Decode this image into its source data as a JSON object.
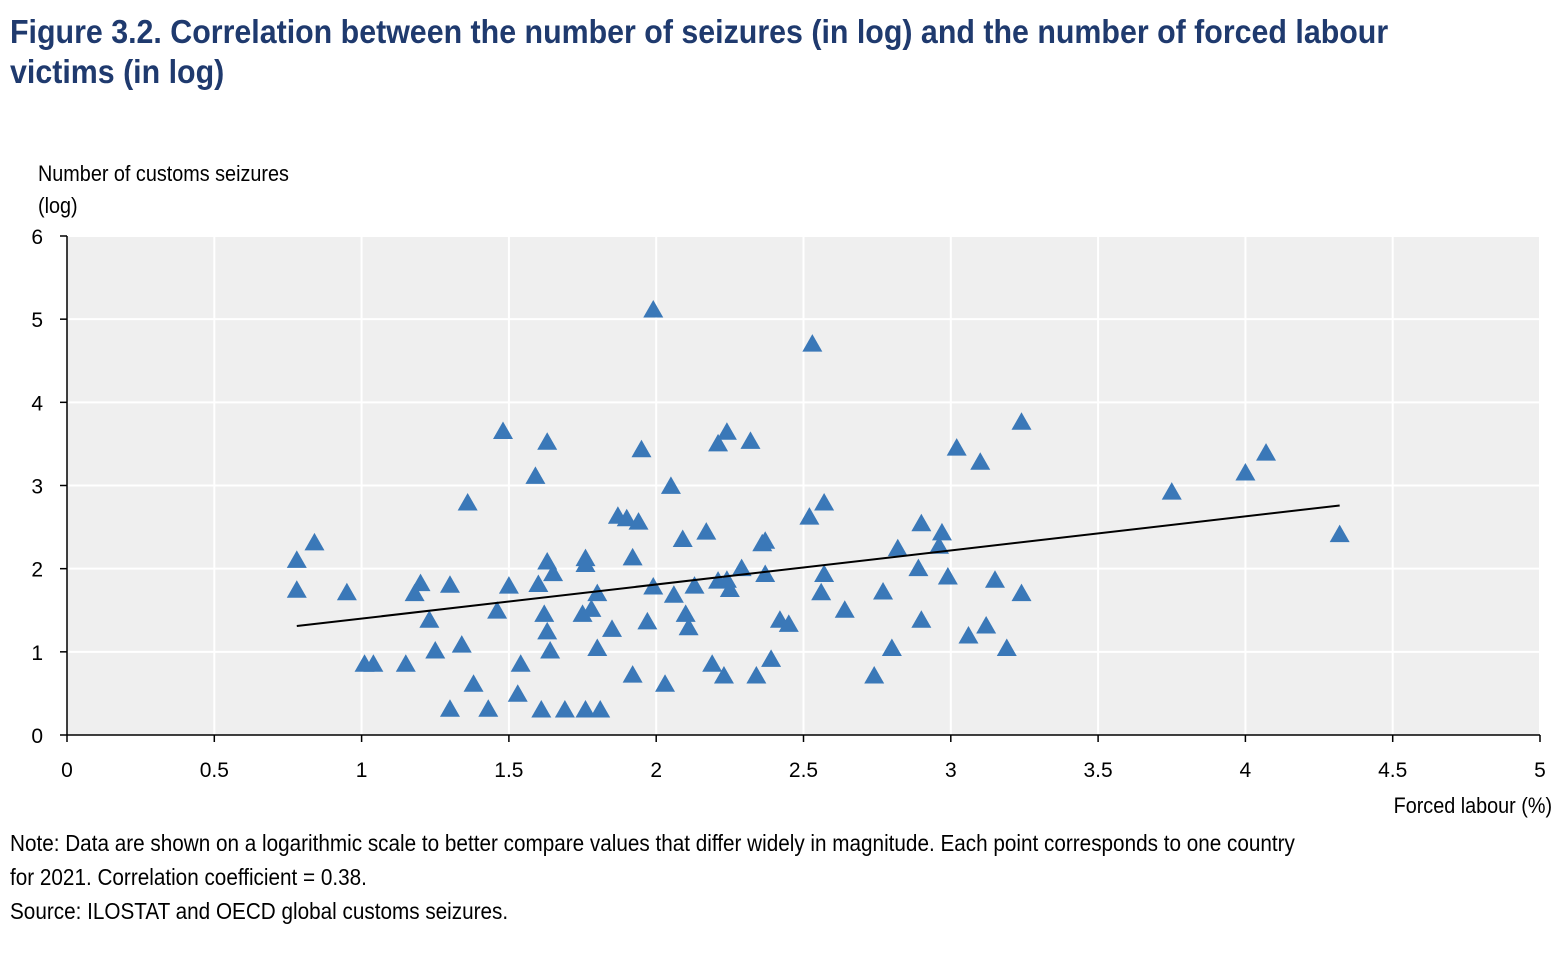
{
  "figure": {
    "title": "Figure 3.2. Correlation between the number of seizures (in log) and the number of forced labour victims (in log)",
    "note": "Note: Data are shown on a logarithmic scale to better compare values that differ widely in magnitude. Each point corresponds to one country for 2021. Correlation coefficient = 0.38.",
    "source": "Source: ILOSTAT and OECD global customs seizures."
  },
  "colors": {
    "marker": "#3a78b8",
    "plot_bg": "#efefef",
    "title": "#1f3a6e"
  },
  "chart_data": {
    "type": "scatter",
    "title": "Figure 3.2. Correlation between the number of seizures (in log) and the number of forced labour victims (in log)",
    "ylabel_line1": "Number of customs seizures",
    "ylabel_line2": "(log)",
    "xlabel": "Forced labour (%)",
    "xlim": [
      0,
      5
    ],
    "ylim": [
      0,
      6
    ],
    "xticks": [
      "0",
      "0.5",
      "1",
      "1.5",
      "2",
      "2.5",
      "3",
      "3.5",
      "4",
      "4.5",
      "5"
    ],
    "yticks": [
      "0",
      "1",
      "2",
      "3",
      "4",
      "5",
      "6"
    ],
    "grid": true,
    "marker": "triangle",
    "trendline": {
      "x": [
        0.78,
        4.32
      ],
      "y": [
        1.31,
        2.76
      ]
    },
    "points": [
      [
        0.78,
        2.1
      ],
      [
        0.78,
        1.74
      ],
      [
        0.84,
        2.31
      ],
      [
        0.95,
        1.71
      ],
      [
        1.01,
        0.85
      ],
      [
        1.04,
        0.85
      ],
      [
        1.15,
        0.85
      ],
      [
        1.18,
        1.7
      ],
      [
        1.2,
        1.82
      ],
      [
        1.23,
        1.38
      ],
      [
        1.25,
        1.01
      ],
      [
        1.3,
        1.8
      ],
      [
        1.3,
        0.31
      ],
      [
        1.34,
        1.08
      ],
      [
        1.36,
        2.79
      ],
      [
        1.38,
        0.61
      ],
      [
        1.43,
        0.31
      ],
      [
        1.46,
        1.49
      ],
      [
        1.48,
        3.65
      ],
      [
        1.5,
        1.79
      ],
      [
        1.53,
        0.49
      ],
      [
        1.54,
        0.85
      ],
      [
        1.59,
        3.11
      ],
      [
        1.6,
        1.81
      ],
      [
        1.61,
        0.3
      ],
      [
        1.62,
        1.45
      ],
      [
        1.63,
        3.52
      ],
      [
        1.63,
        1.24
      ],
      [
        1.63,
        2.08
      ],
      [
        1.64,
        1.01
      ],
      [
        1.65,
        1.94
      ],
      [
        1.69,
        0.3
      ],
      [
        1.75,
        1.45
      ],
      [
        1.76,
        0.3
      ],
      [
        1.76,
        2.12
      ],
      [
        1.76,
        2.05
      ],
      [
        1.78,
        1.51
      ],
      [
        1.8,
        1.7
      ],
      [
        1.8,
        1.04
      ],
      [
        1.81,
        0.3
      ],
      [
        1.85,
        1.27
      ],
      [
        1.87,
        2.63
      ],
      [
        1.9,
        2.6
      ],
      [
        1.92,
        2.13
      ],
      [
        1.92,
        0.72
      ],
      [
        1.94,
        2.56
      ],
      [
        1.95,
        3.43
      ],
      [
        1.97,
        1.36
      ],
      [
        1.99,
        1.78
      ],
      [
        1.99,
        5.11
      ],
      [
        2.03,
        0.61
      ],
      [
        2.05,
        2.99
      ],
      [
        2.06,
        1.68
      ],
      [
        2.09,
        2.35
      ],
      [
        2.1,
        1.45
      ],
      [
        2.11,
        1.29
      ],
      [
        2.13,
        1.79
      ],
      [
        2.17,
        2.44
      ],
      [
        2.19,
        0.85
      ],
      [
        2.21,
        3.5
      ],
      [
        2.21,
        1.85
      ],
      [
        2.23,
        0.71
      ],
      [
        2.24,
        3.64
      ],
      [
        2.24,
        1.86
      ],
      [
        2.25,
        1.75
      ],
      [
        2.29,
        2.0
      ],
      [
        2.32,
        3.53
      ],
      [
        2.34,
        0.71
      ],
      [
        2.36,
        2.3
      ],
      [
        2.37,
        2.33
      ],
      [
        2.37,
        1.93
      ],
      [
        2.39,
        0.91
      ],
      [
        2.42,
        1.38
      ],
      [
        2.45,
        1.33
      ],
      [
        2.52,
        2.62
      ],
      [
        2.53,
        4.7
      ],
      [
        2.56,
        1.71
      ],
      [
        2.57,
        1.93
      ],
      [
        2.57,
        2.79
      ],
      [
        2.64,
        1.5
      ],
      [
        2.74,
        0.71
      ],
      [
        2.77,
        1.72
      ],
      [
        2.8,
        1.04
      ],
      [
        2.82,
        2.24
      ],
      [
        2.89,
        2.0
      ],
      [
        2.9,
        1.38
      ],
      [
        2.9,
        2.54
      ],
      [
        2.96,
        2.27
      ],
      [
        2.97,
        2.43
      ],
      [
        2.99,
        1.9
      ],
      [
        3.02,
        3.45
      ],
      [
        3.06,
        1.19
      ],
      [
        3.1,
        3.28
      ],
      [
        3.12,
        1.31
      ],
      [
        3.15,
        1.86
      ],
      [
        3.19,
        1.04
      ],
      [
        3.24,
        3.76
      ],
      [
        3.24,
        1.7
      ],
      [
        3.75,
        2.92
      ],
      [
        4.0,
        3.15
      ],
      [
        4.07,
        3.39
      ],
      [
        4.32,
        2.41
      ]
    ]
  }
}
